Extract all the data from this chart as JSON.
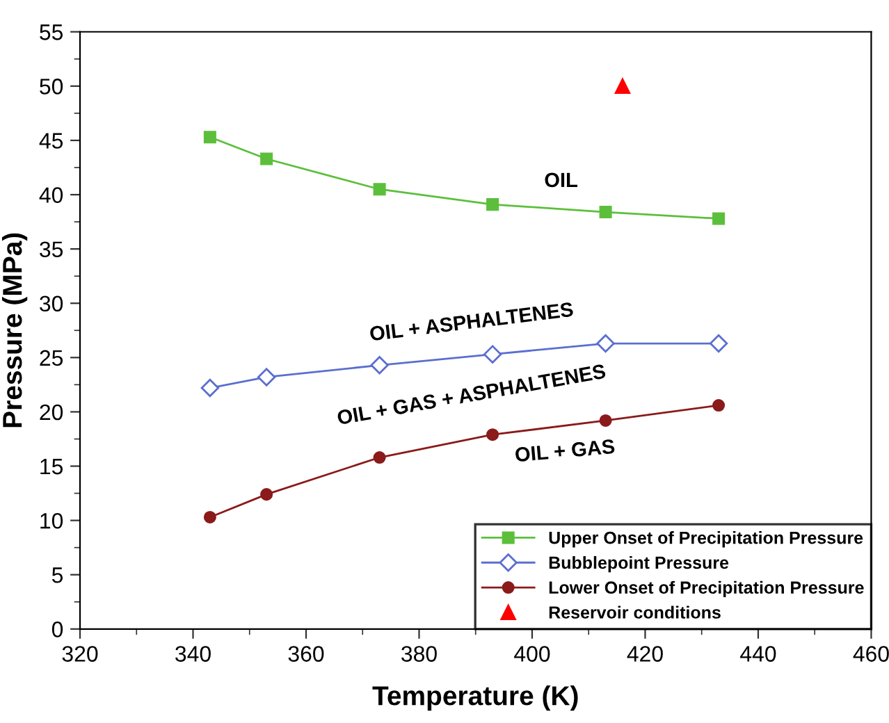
{
  "chart_data": {
    "type": "line",
    "xlabel": "Temperature (K)",
    "ylabel": "Pressure (MPa)",
    "xlim": [
      320,
      460
    ],
    "xticks": [
      320,
      340,
      360,
      380,
      400,
      420,
      440,
      460
    ],
    "ylim": [
      0,
      55
    ],
    "yticks": [
      0,
      5,
      10,
      15,
      20,
      25,
      30,
      35,
      40,
      45,
      50,
      55
    ],
    "grid": false,
    "legend": "bottom right",
    "series": [
      {
        "name": "Upper Onset of Precipitation Pressure",
        "marker": "square",
        "color": "#5cbf3c",
        "x": [
          343,
          353,
          373,
          393,
          413,
          433
        ],
        "values": [
          45.3,
          43.3,
          40.5,
          39.1,
          38.4,
          37.8
        ]
      },
      {
        "name": "Bubblepoint Pressure",
        "marker": "diamond",
        "color": "#5b6fcf",
        "x": [
          343,
          353,
          373,
          393,
          413,
          433
        ],
        "values": [
          22.2,
          23.2,
          24.3,
          25.3,
          26.3,
          26.3
        ]
      },
      {
        "name": "Lower Onset of Precipitation Pressure",
        "marker": "circle",
        "color": "#8b1a1a",
        "x": [
          343,
          353,
          373,
          393,
          413,
          433
        ],
        "values": [
          10.3,
          12.4,
          15.8,
          17.9,
          19.2,
          20.6
        ]
      },
      {
        "name": "Reservoir conditions",
        "type": "scatter",
        "marker": "triangle",
        "color": "#ff0000",
        "x": [
          416
        ],
        "values": [
          50
        ]
      }
    ],
    "annotations": [
      "OIL",
      "OIL + ASPHALTENES",
      "OIL + GAS + ASPHALTENES",
      "OIL + GAS"
    ]
  }
}
